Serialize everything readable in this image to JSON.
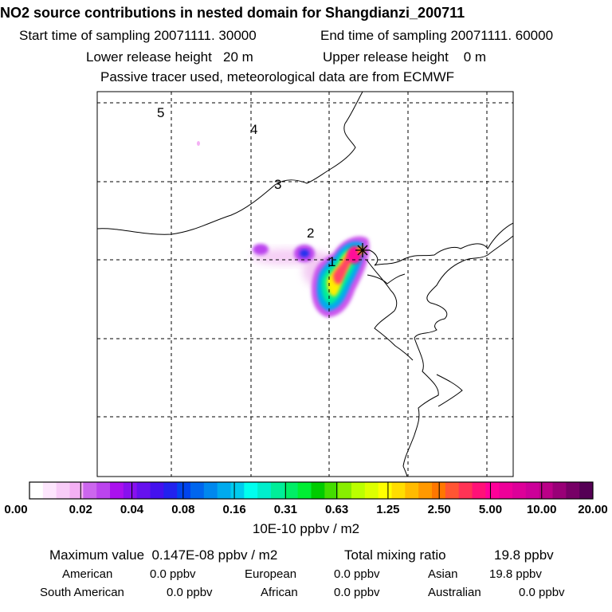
{
  "title": "NO2 source contributions in nested domain for Shangdianzi_200711",
  "start_label": "Start time of sampling 20071111. 30000",
  "end_label": "End time of sampling 20071111. 60000",
  "lower_label": "Lower release height   20 m",
  "upper_label": "Upper release height    0 m",
  "tracer_label": "Passive tracer used, meteorological data are from ECMWF",
  "map": {
    "region_labels": [
      "1",
      "2",
      "3",
      "4",
      "5"
    ],
    "receptor_marker": "star-marker"
  },
  "colorbar": {
    "labels": [
      "0.00",
      "0.02",
      "0.04",
      "0.08",
      "0.16",
      "0.31",
      "0.63",
      "1.25",
      "2.50",
      "5.00",
      "10.00",
      "20.00"
    ],
    "colors": [
      "#ffffff",
      "#fde6fd",
      "#f8ccf8",
      "#f4b0f4",
      "#cc66ee",
      "#bb44ee",
      "#aa11ee",
      "#8811ee",
      "#6611ee",
      "#4411ee",
      "#2222ee",
      "#0044ee",
      "#0066ee",
      "#0088ee",
      "#00aaee",
      "#00ccee",
      "#00ffee",
      "#00eecc",
      "#00ee99",
      "#00ee66",
      "#00ee33",
      "#00cc00",
      "#44dd00",
      "#88ee00",
      "#bbff00",
      "#ddff00",
      "#ffff00",
      "#ffdd00",
      "#ffbb00",
      "#ff9900",
      "#ff7700",
      "#ff5533",
      "#ff3355",
      "#ff1177",
      "#ff0099",
      "#ee0099",
      "#dd0099",
      "#cc0099",
      "#bb0088",
      "#990077",
      "#770066",
      "#550055"
    ],
    "units": "10E-10 ppbv / m2"
  },
  "stats": {
    "max_label": "Maximum value  0.147E-08 ppbv / m2",
    "total_label": "Total mixing ratio",
    "total_value": "19.8 ppbv",
    "american_label": "American",
    "american_value": "0.0 ppbv",
    "european_label": "European",
    "european_value": "0.0 ppbv",
    "asian_label": "Asian",
    "asian_value": "19.8 ppbv",
    "south_american_label": "South American",
    "south_american_value": "0.0 ppbv",
    "african_label": "African",
    "african_value": "0.0 ppbv",
    "australian_label": "Australian",
    "australian_value": "0.0 ppbv"
  }
}
